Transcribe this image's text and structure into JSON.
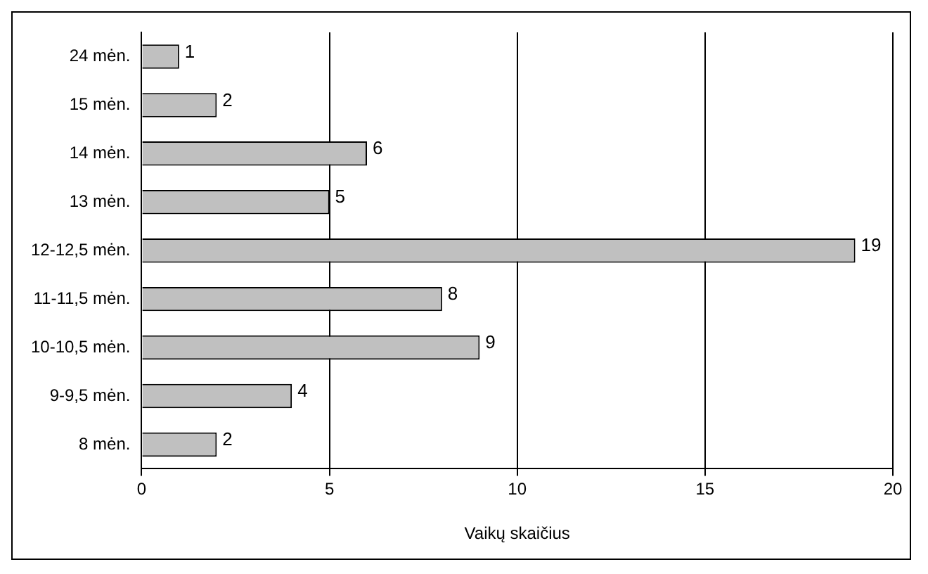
{
  "chart_data": {
    "type": "bar",
    "orientation": "horizontal",
    "categories": [
      "24 mėn.",
      "15 mėn.",
      "14 mėn.",
      "13 mėn.",
      "12-12,5 mėn.",
      "11-11,5 mėn.",
      "10-10,5 mėn.",
      "9-9,5 mėn.",
      "8 mėn."
    ],
    "values": [
      1,
      2,
      6,
      5,
      19,
      8,
      9,
      4,
      2
    ],
    "color": "#c0c0c0",
    "xlim": [
      0,
      20
    ],
    "xticks": [
      0,
      5,
      10,
      15,
      20
    ],
    "xlabel": "Vaikų skaičius",
    "grid": "x",
    "data_labels": true
  }
}
